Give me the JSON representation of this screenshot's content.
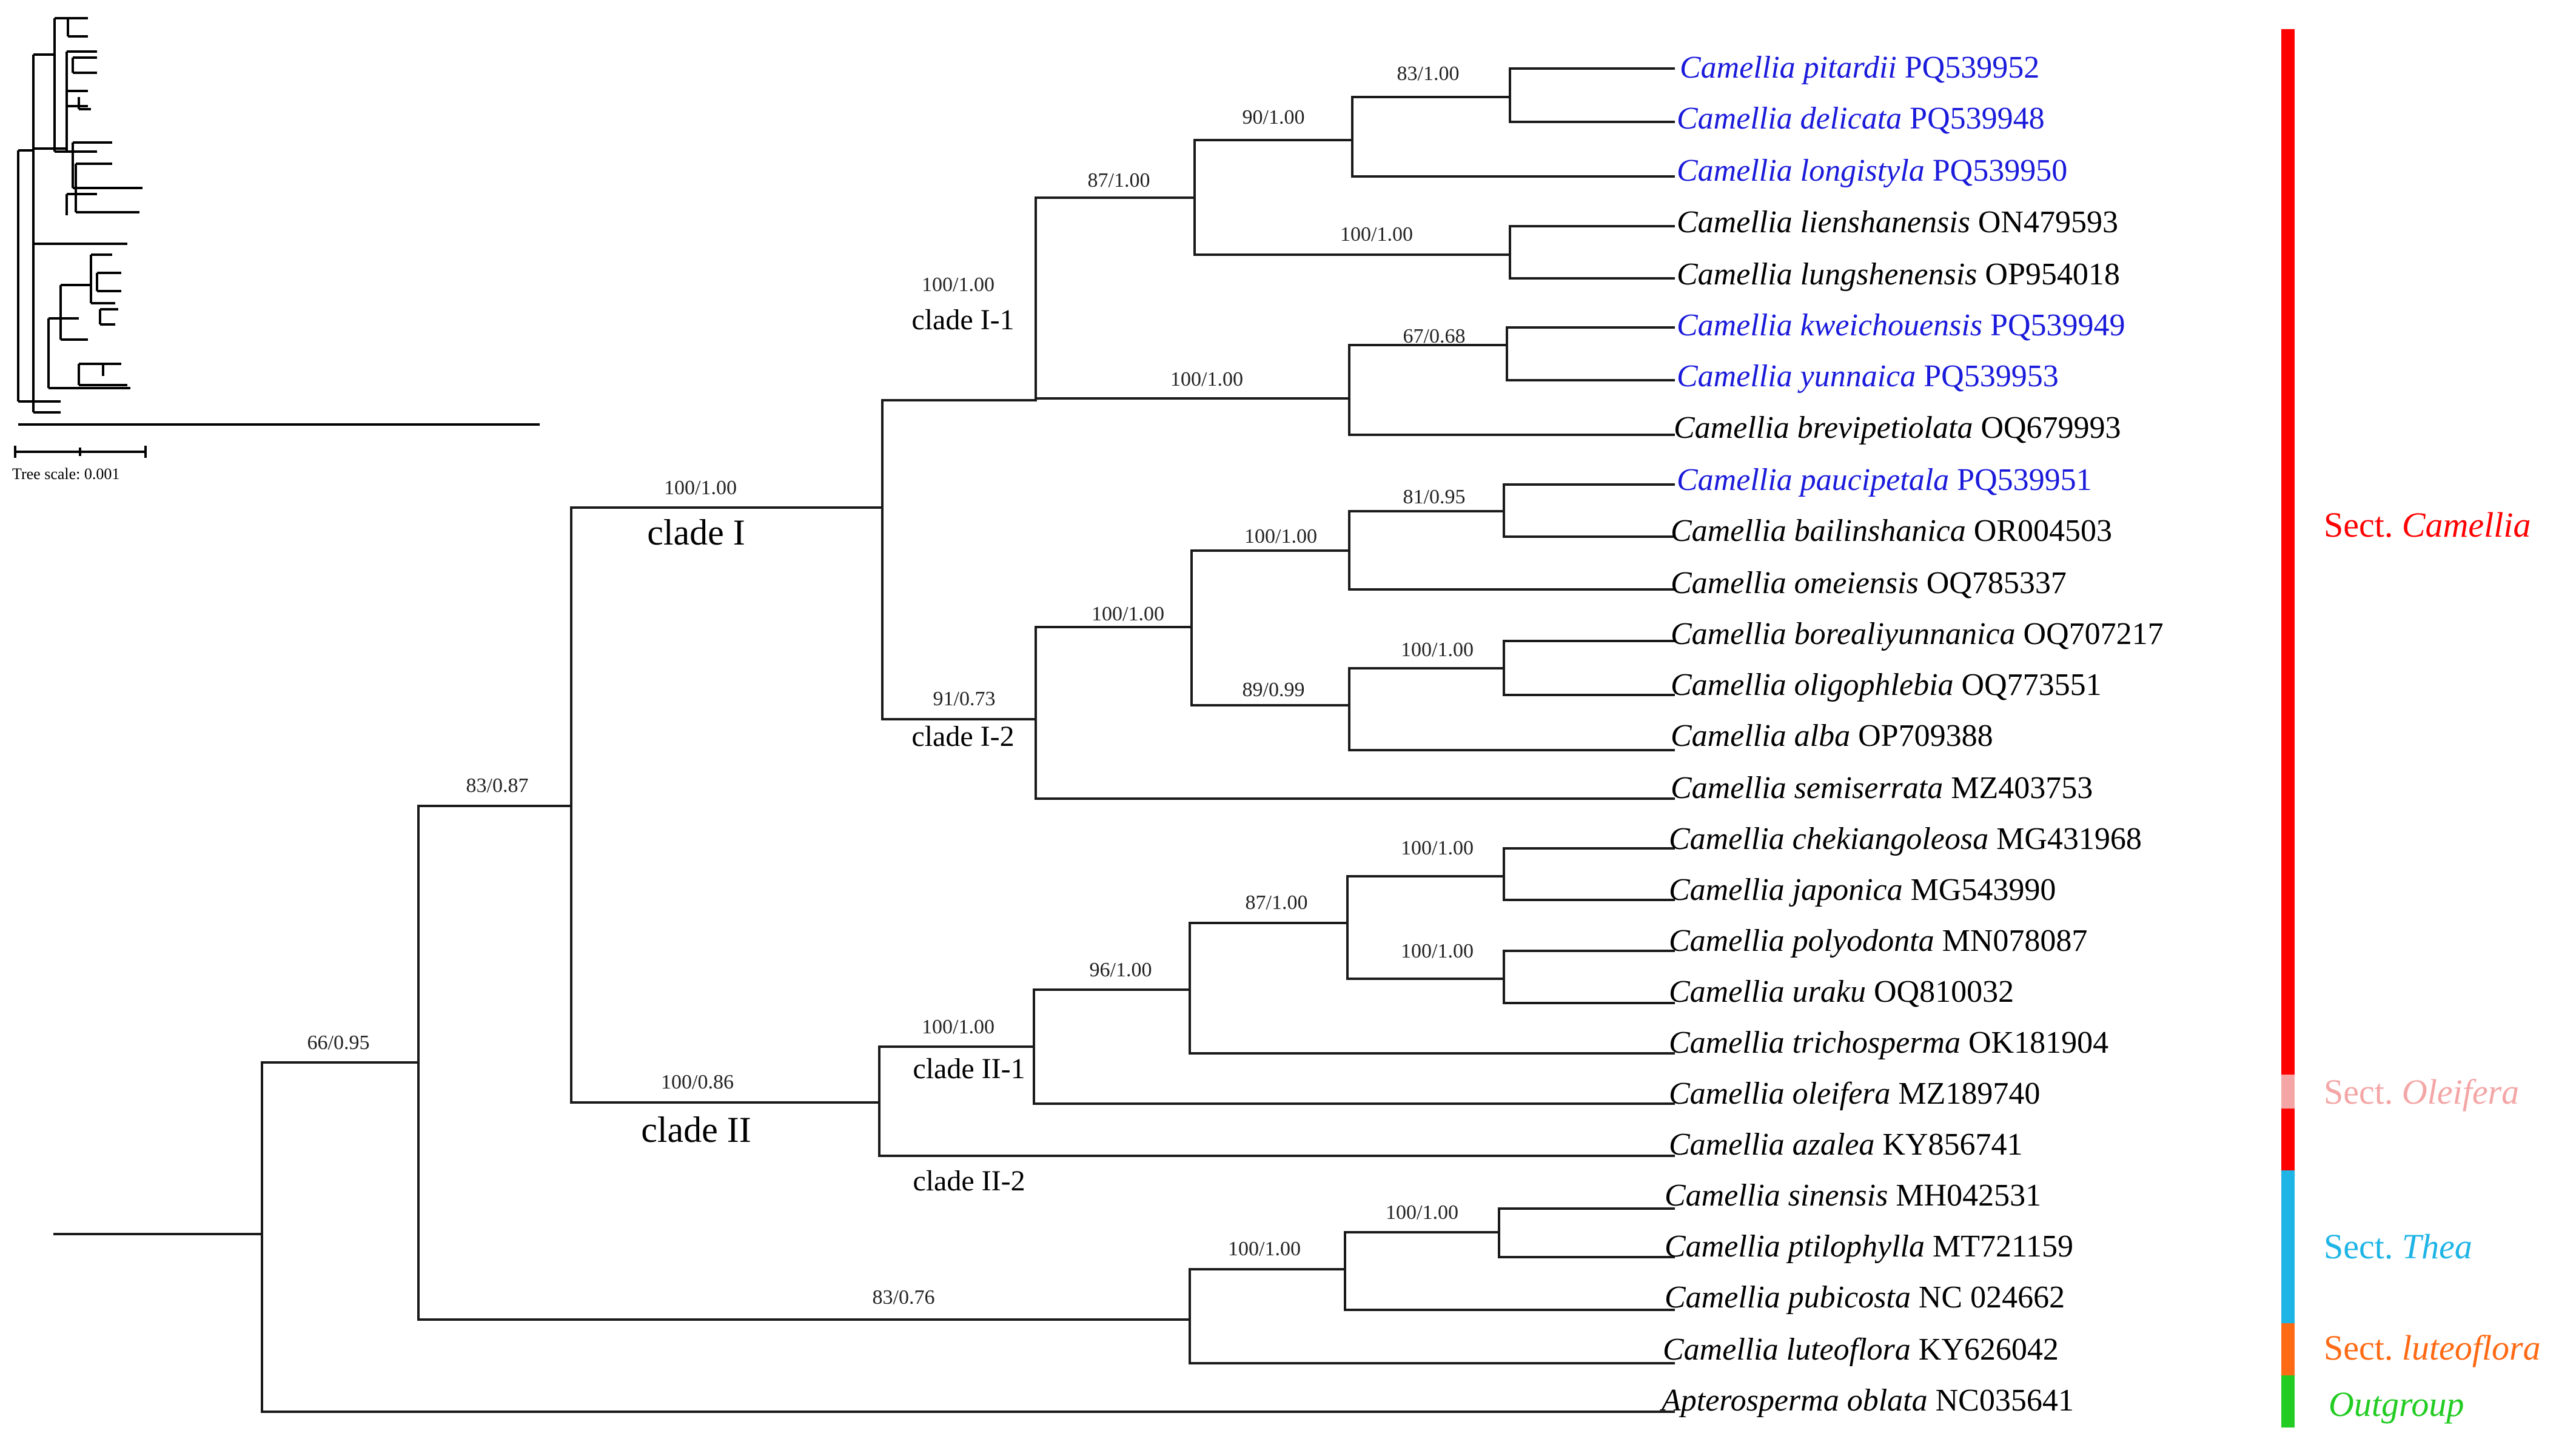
{
  "colors": {
    "new_species": "#1a1adb",
    "known_species": "#000000",
    "camellia": "#ff0000",
    "oleifera": "#f4a6a6",
    "thea": "#1eb4e6",
    "luteoflora": "#ff6a14",
    "outgroup": "#22cc22"
  },
  "tree_scale": "Tree scale: 0.001",
  "clades": {
    "clade_I": "clade I",
    "clade_II": "clade II",
    "clade_I_1": "clade I-1",
    "clade_I_2": "clade I-2",
    "clade_II_1": "clade II-1",
    "clade_II_2": "clade II-2"
  },
  "support": {
    "n83_100": "83/1.00",
    "n90_100": "90/1.00",
    "n87_100a": "87/1.00",
    "n100_100a": "100/1.00",
    "n67_068": "67/0.68",
    "n100_100b": "100/1.00",
    "n100_100c": "100/1.00",
    "n100_100d": "100/1.00",
    "n81_095": "81/0.95",
    "n100_100e": "100/1.00",
    "n100_100f": "100/1.00",
    "n89_099": "89/0.99",
    "n91_073": "91/0.73",
    "n83_087": "83/0.87",
    "n100_100g": "100/1.00",
    "n87_100b": "87/1.00",
    "n100_100h": "100/1.00",
    "n96_100": "96/1.00",
    "n100_100i": "100/1.00",
    "n100_086": "100/0.86",
    "n66_095": "66/0.95",
    "n100_100j": "100/1.00",
    "n100_100k": "100/1.00",
    "n83_076": "83/0.76"
  },
  "leaves": [
    {
      "species": "Camellia pitardii",
      "accession": "PQ539952",
      "new": true
    },
    {
      "species": "Camellia delicata",
      "accession": "PQ539948",
      "new": true
    },
    {
      "species": "Camellia longistyla",
      "accession": "PQ539950",
      "new": true
    },
    {
      "species": "Camellia lienshanensis",
      "accession": " ON479593",
      "new": false
    },
    {
      "species": "Camellia lungshenensis",
      "accession": "OP954018",
      "new": false
    },
    {
      "species": "Camellia kweichouensis",
      "accession": "PQ539949",
      "new": true
    },
    {
      "species": "Camellia yunnaica",
      "accession": "PQ539953",
      "new": true
    },
    {
      "species": "Camellia brevipetiolata",
      "accession": "OQ679993",
      "new": false
    },
    {
      "species": "Camellia paucipetala",
      "accession": "PQ539951",
      "new": true
    },
    {
      "species": "Camellia bailinshanica",
      "accession": "OR004503",
      "new": false
    },
    {
      "species": "Camellia omeiensis",
      "accession": "OQ785337",
      "new": false
    },
    {
      "species": "Camellia borealiyunnanica",
      "accession": "OQ707217",
      "new": false
    },
    {
      "species": "Camellia oligophlebia",
      "accession": "OQ773551",
      "new": false
    },
    {
      "species": "Camellia alba",
      "accession": "OP709388",
      "new": false
    },
    {
      "species": "Camellia semiserrata",
      "accession": "MZ403753",
      "new": false
    },
    {
      "species": "Camellia chekiangoleosa",
      "accession": "MG431968",
      "new": false
    },
    {
      "species": "Camellia japonica",
      "accession": "MG543990",
      "new": false
    },
    {
      "species": "Camellia polyodonta",
      "accession": "MN078087",
      "new": false
    },
    {
      "species": "Camellia uraku",
      "accession": "OQ810032",
      "new": false
    },
    {
      "species": "Camellia trichosperma",
      "accession": "OK181904",
      "new": false
    },
    {
      "species": "Camellia oleifera",
      "accession": "MZ189740",
      "new": false
    },
    {
      "species": "Camellia azalea",
      "accession": "KY856741",
      "new": false
    },
    {
      "species": "Camellia sinensis",
      "accession": "MH042531",
      "new": false
    },
    {
      "species": "Camellia ptilophylla",
      "accession": "MT721159",
      "new": false
    },
    {
      "species": "Camellia pubicosta",
      "accession": "NC 024662",
      "new": false
    },
    {
      "species": "Camellia luteoflora",
      "accession": "KY626042",
      "new": false
    },
    {
      "species": "Apterosperma oblata",
      "accession": "NC035641",
      "new": false
    }
  ],
  "sections": {
    "camellia": {
      "prefix": "Sect. ",
      "name": "Camellia"
    },
    "oleifera": {
      "prefix": "Sect. ",
      "name": "Oleifera"
    },
    "thea": {
      "prefix": "Sect. ",
      "name": "Thea"
    },
    "luteoflora": {
      "prefix": "Sect.  ",
      "name": "luteoflora"
    },
    "outgroup": {
      "name": "Outgroup"
    }
  }
}
